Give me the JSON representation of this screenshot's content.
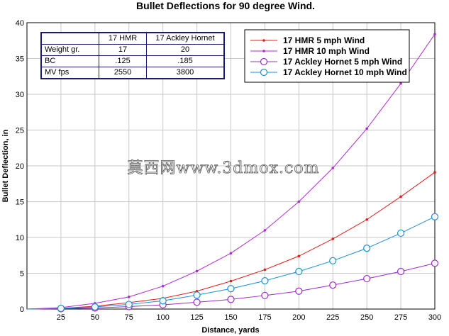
{
  "chart_data": {
    "type": "line",
    "title": "Bullet Deflections for 90 degree Wind.",
    "xlabel": "Distance, yards",
    "ylabel": "Bullet Deflection, in",
    "xlim": [
      0,
      300
    ],
    "ylim": [
      0,
      40
    ],
    "xticks": [
      0,
      25,
      50,
      75,
      100,
      125,
      150,
      175,
      200,
      225,
      250,
      275,
      300
    ],
    "yticks": [
      0,
      5,
      10,
      15,
      20,
      25,
      30,
      35,
      40
    ],
    "grid": true,
    "legend_position": "top-right",
    "series": [
      {
        "name": "17 HMR 5 mph Wind",
        "color": "#e31b1b",
        "marker": "dot",
        "x": [
          0,
          25,
          50,
          75,
          100,
          125,
          150,
          175,
          200,
          225,
          250,
          275,
          300
        ],
        "y": [
          0,
          0.1,
          0.4,
          0.9,
          1.5,
          2.5,
          3.9,
          5.5,
          7.4,
          9.8,
          12.5,
          15.7,
          19.1
        ]
      },
      {
        "name": "17 HMR 10 mph Wind",
        "color": "#b02ccf",
        "marker": "dot",
        "x": [
          0,
          25,
          50,
          75,
          100,
          125,
          150,
          175,
          200,
          225,
          250,
          275,
          300
        ],
        "y": [
          0,
          0.2,
          0.8,
          1.7,
          3.2,
          5.3,
          7.8,
          11.0,
          15.0,
          19.7,
          25.2,
          31.5,
          38.4
        ]
      },
      {
        "name": "17 Ackley Hornet 5 mph Wind",
        "color": "#9a2cc4",
        "marker": "circle",
        "x": [
          0,
          25,
          50,
          75,
          100,
          125,
          150,
          175,
          200,
          225,
          250,
          275,
          300
        ],
        "y": [
          0,
          0.05,
          0.15,
          0.35,
          0.6,
          0.95,
          1.35,
          1.9,
          2.5,
          3.35,
          4.25,
          5.25,
          6.4
        ]
      },
      {
        "name": "17 Ackley Hornet 10 mph Wind",
        "color": "#1a8fd0",
        "marker": "circle",
        "x": [
          0,
          25,
          50,
          75,
          100,
          125,
          150,
          175,
          200,
          225,
          250,
          275,
          300
        ],
        "y": [
          0,
          0.1,
          0.3,
          0.65,
          1.15,
          1.95,
          2.85,
          3.95,
          5.25,
          6.75,
          8.5,
          10.6,
          12.9
        ]
      }
    ]
  },
  "specs_table": {
    "header": [
      "",
      "17 HMR",
      "17 Ackley Hornet"
    ],
    "rows": [
      [
        "Weight gr.",
        "17",
        "20"
      ],
      [
        "BC",
        ".125",
        ".185"
      ],
      [
        "MV fps",
        "2550",
        "3800"
      ]
    ]
  },
  "watermark": "莫西网www.3dmox.com"
}
